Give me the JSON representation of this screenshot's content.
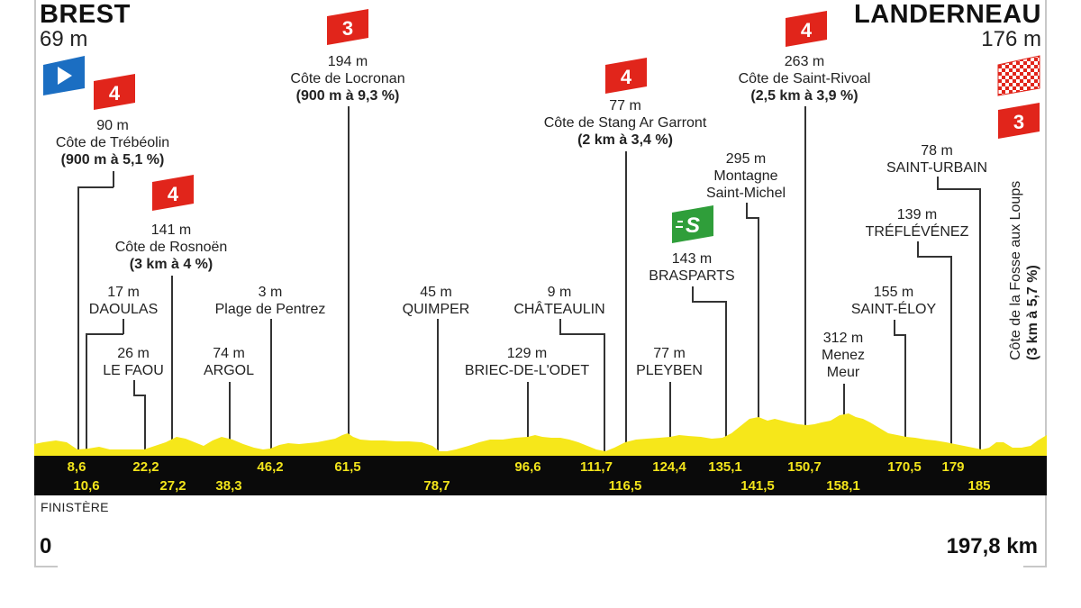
{
  "start": {
    "name": "BREST",
    "altitude": "69 m"
  },
  "finish": {
    "name": "LANDERNEAU",
    "altitude": "176 m"
  },
  "badges": {
    "cat3": "3",
    "cat4": "4",
    "sprint": "S"
  },
  "points": [
    {
      "alt": "90 m",
      "name": "Côte de Trébéolin",
      "detail": "(900 m à 5,1 %)"
    },
    {
      "alt": "141 m",
      "name": "Côte de Rosnoën",
      "detail": "(3 km à 4 %)"
    },
    {
      "alt": "194 m",
      "name": "Côte de Locronan",
      "detail": "(900 m à 9,3 %)"
    },
    {
      "alt": "77 m",
      "name": "Côte de Stang Ar Garront",
      "detail": "(2 km à 3,4 %)"
    },
    {
      "alt": "263 m",
      "name": "Côte de Saint-Rivoal",
      "detail": "(2,5 km à 3,9 %)"
    },
    {
      "alt": "295 m",
      "name": "Montagne",
      "name2": "Saint-Michel"
    },
    {
      "alt": "143 m",
      "name": "BRASPARTS"
    },
    {
      "alt": "78 m",
      "name": "SAINT-URBAIN"
    },
    {
      "alt": "139 m",
      "name": "TRÉFLÉVÉNEZ"
    },
    {
      "alt": "155 m",
      "name": "SAINT-ÉLOY"
    },
    {
      "alt": "312 m",
      "name": "Menez",
      "name2": "Meur"
    },
    {
      "alt": "17 m",
      "name": "DAOULAS"
    },
    {
      "alt": "26 m",
      "name": "LE FAOU"
    },
    {
      "alt": "74 m",
      "name": "ARGOL"
    },
    {
      "alt": "3 m",
      "name": "Plage de Pentrez"
    },
    {
      "alt": "45 m",
      "name": "QUIMPER"
    },
    {
      "alt": "9 m",
      "name": "CHÂTEAULIN"
    },
    {
      "alt": "129 m",
      "name": "BRIEC-DE-L'ODET"
    },
    {
      "alt": "77 m",
      "name": "PLEYBEN"
    }
  ],
  "final_climb": {
    "name": "Côte de la Fosse aux Loups",
    "detail": "(3 km à 5,7 %)"
  },
  "km_top": [
    "8,6",
    "22,2",
    "46,2",
    "61,5",
    "96,6",
    "111,7",
    "124,4",
    "135,1",
    "150,7",
    "170,5",
    "179"
  ],
  "km_bottom": [
    "10,6",
    "27,2",
    "38,3",
    "78,7",
    "116,5",
    "141,5",
    "158,1",
    "185"
  ],
  "region": "FINISTÈRE",
  "distance_start": "0",
  "distance_end": "197,8 km",
  "colors": {
    "profile": "#f6e71a",
    "band": "#0a0a0a",
    "km_text": "#f2e41b",
    "cat_badge": "#e1251b",
    "sprint_badge": "#2f9e3a",
    "start_flag": "#1b6ec2"
  }
}
